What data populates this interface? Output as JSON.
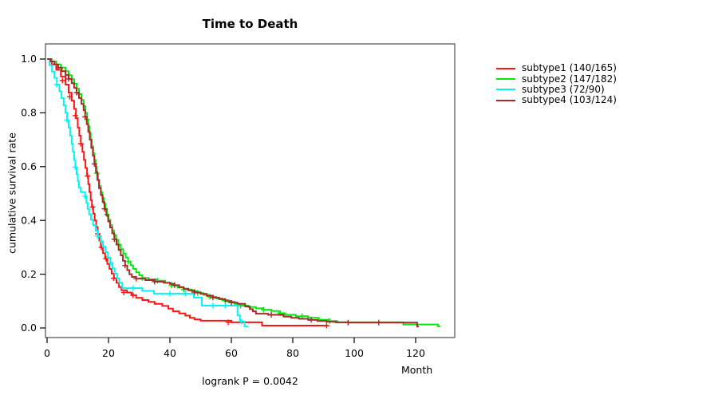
{
  "chart_data": {
    "type": "line",
    "subtype": "kaplan-meier-step",
    "title": "Time to Death",
    "xlabel": "Month",
    "ylabel": "cumulative survival rate",
    "annotation": "logrank P = 0.0042",
    "xlim": [
      0,
      133
    ],
    "ylim": [
      0,
      1.04
    ],
    "grid": false,
    "legend_position": "right-outside",
    "x_ticks": [
      0,
      20,
      40,
      60,
      80,
      100,
      120
    ],
    "x_tick_labels": [
      "0",
      "20",
      "40",
      "60",
      "80",
      "100",
      "120"
    ],
    "y_ticks": [
      0,
      0.2,
      0.4,
      0.6,
      0.8,
      1.0
    ],
    "y_tick_labels": [
      "0.0",
      "0.2",
      "0.4",
      "0.6",
      "0.8",
      "1.0"
    ],
    "frame_color": "#4d4d4d",
    "tick_color": "#000000",
    "series": [
      {
        "name": "subtype1 (140/165)",
        "color": "#ff1414",
        "end": 91.5,
        "points": [
          [
            0,
            1.0
          ],
          [
            1.5,
            0.98
          ],
          [
            3,
            0.96
          ],
          [
            4.5,
            0.935
          ],
          [
            6,
            0.905
          ],
          [
            7,
            0.875
          ],
          [
            8,
            0.845
          ],
          [
            8.8,
            0.815
          ],
          [
            9.4,
            0.78
          ],
          [
            10,
            0.745
          ],
          [
            10.5,
            0.715
          ],
          [
            11,
            0.685
          ],
          [
            11.5,
            0.655
          ],
          [
            12,
            0.625
          ],
          [
            12.5,
            0.595
          ],
          [
            13,
            0.565
          ],
          [
            13.4,
            0.535
          ],
          [
            13.8,
            0.505
          ],
          [
            14.2,
            0.475
          ],
          [
            14.6,
            0.45
          ],
          [
            15,
            0.425
          ],
          [
            15.5,
            0.4
          ],
          [
            16,
            0.375
          ],
          [
            16.5,
            0.35
          ],
          [
            17,
            0.325
          ],
          [
            17.5,
            0.3
          ],
          [
            18.2,
            0.278
          ],
          [
            18.9,
            0.258
          ],
          [
            19.6,
            0.238
          ],
          [
            20.3,
            0.22
          ],
          [
            21,
            0.202
          ],
          [
            21.8,
            0.185
          ],
          [
            22.6,
            0.168
          ],
          [
            23.4,
            0.152
          ],
          [
            24.2,
            0.14
          ],
          [
            26,
            0.132
          ],
          [
            27.5,
            0.122
          ],
          [
            29,
            0.112
          ],
          [
            31,
            0.104
          ],
          [
            33,
            0.097
          ],
          [
            35,
            0.09
          ],
          [
            37.5,
            0.082
          ],
          [
            39.5,
            0.072
          ],
          [
            41,
            0.062
          ],
          [
            43,
            0.054
          ],
          [
            45,
            0.046
          ],
          [
            46.5,
            0.038
          ],
          [
            48,
            0.032
          ],
          [
            50,
            0.027
          ],
          [
            60,
            0.021
          ],
          [
            70,
            0.009
          ]
        ],
        "censors": [
          [
            5,
            0.92
          ],
          [
            7.4,
            0.86
          ],
          [
            9.2,
            0.79
          ],
          [
            11,
            0.685
          ],
          [
            13.2,
            0.565
          ],
          [
            14.8,
            0.45
          ],
          [
            16.5,
            0.35
          ],
          [
            17.7,
            0.3
          ],
          [
            19.2,
            0.258
          ],
          [
            21.7,
            0.185
          ],
          [
            25,
            0.132
          ],
          [
            28,
            0.122
          ],
          [
            59,
            0.021
          ],
          [
            91,
            0.009
          ]
        ]
      },
      {
        "name": "subtype2 (147/182)",
        "color": "#00e813",
        "end": 128,
        "points": [
          [
            0,
            1.0
          ],
          [
            1.5,
            0.991
          ],
          [
            3,
            0.98
          ],
          [
            4.5,
            0.968
          ],
          [
            6,
            0.955
          ],
          [
            7,
            0.94
          ],
          [
            8,
            0.925
          ],
          [
            8.8,
            0.908
          ],
          [
            9.6,
            0.89
          ],
          [
            10.4,
            0.87
          ],
          [
            11.2,
            0.848
          ],
          [
            11.9,
            0.825
          ],
          [
            12.5,
            0.8
          ],
          [
            13,
            0.775
          ],
          [
            13.4,
            0.75
          ],
          [
            13.8,
            0.725
          ],
          [
            14.2,
            0.7
          ],
          [
            14.6,
            0.675
          ],
          [
            15,
            0.65
          ],
          [
            15.4,
            0.625
          ],
          [
            15.8,
            0.6
          ],
          [
            16.2,
            0.575
          ],
          [
            16.6,
            0.55
          ],
          [
            17,
            0.527
          ],
          [
            17.5,
            0.505
          ],
          [
            18,
            0.483
          ],
          [
            18.5,
            0.462
          ],
          [
            19,
            0.442
          ],
          [
            19.5,
            0.422
          ],
          [
            20,
            0.402
          ],
          [
            20.6,
            0.382
          ],
          [
            21.2,
            0.363
          ],
          [
            21.8,
            0.345
          ],
          [
            22.5,
            0.327
          ],
          [
            23.2,
            0.31
          ],
          [
            24,
            0.293
          ],
          [
            24.8,
            0.277
          ],
          [
            25.6,
            0.262
          ],
          [
            26.4,
            0.247
          ],
          [
            27.2,
            0.233
          ],
          [
            28,
            0.22
          ],
          [
            29,
            0.207
          ],
          [
            30,
            0.196
          ],
          [
            31,
            0.186
          ],
          [
            33,
            0.181
          ],
          [
            36,
            0.176
          ],
          [
            38.5,
            0.168
          ],
          [
            40.5,
            0.158
          ],
          [
            42.5,
            0.15
          ],
          [
            44.5,
            0.143
          ],
          [
            47,
            0.137
          ],
          [
            49,
            0.13
          ],
          [
            51,
            0.123
          ],
          [
            53,
            0.116
          ],
          [
            55,
            0.11
          ],
          [
            57,
            0.104
          ],
          [
            59,
            0.098
          ],
          [
            61,
            0.09
          ],
          [
            63,
            0.083
          ],
          [
            65.5,
            0.078
          ],
          [
            68,
            0.073
          ],
          [
            70.5,
            0.068
          ],
          [
            73,
            0.063
          ],
          [
            75.5,
            0.055
          ],
          [
            77.5,
            0.049
          ],
          [
            81,
            0.044
          ],
          [
            85,
            0.038
          ],
          [
            88.5,
            0.031
          ],
          [
            92,
            0.026
          ],
          [
            94.5,
            0.021
          ],
          [
            116,
            0.013
          ],
          [
            127.3,
            0.006
          ]
        ],
        "censors": [
          [
            4.5,
            0.968
          ],
          [
            7,
            0.94
          ],
          [
            10.4,
            0.87
          ],
          [
            13,
            0.775
          ],
          [
            16.2,
            0.575
          ],
          [
            19.5,
            0.422
          ],
          [
            23.2,
            0.31
          ],
          [
            26.4,
            0.247
          ],
          [
            31,
            0.186
          ],
          [
            36,
            0.176
          ],
          [
            40.5,
            0.158
          ],
          [
            44.5,
            0.143
          ],
          [
            49,
            0.13
          ],
          [
            53,
            0.116
          ],
          [
            58,
            0.101
          ],
          [
            63,
            0.083
          ],
          [
            70.5,
            0.068
          ],
          [
            76,
            0.055
          ],
          [
            83,
            0.044
          ],
          [
            92,
            0.026
          ]
        ]
      },
      {
        "name": "subtype3 (72/90)",
        "color": "#00f5f5",
        "end": 65.5,
        "points": [
          [
            0,
            1.0
          ],
          [
            0.8,
            0.977
          ],
          [
            1.6,
            0.953
          ],
          [
            2.4,
            0.93
          ],
          [
            3.2,
            0.905
          ],
          [
            4,
            0.88
          ],
          [
            4.7,
            0.855
          ],
          [
            5.4,
            0.828
          ],
          [
            6,
            0.8
          ],
          [
            6.5,
            0.773
          ],
          [
            7,
            0.745
          ],
          [
            7.5,
            0.715
          ],
          [
            8,
            0.685
          ],
          [
            8.4,
            0.655
          ],
          [
            8.8,
            0.625
          ],
          [
            9.2,
            0.598
          ],
          [
            9.6,
            0.572
          ],
          [
            10,
            0.547
          ],
          [
            10.4,
            0.522
          ],
          [
            11,
            0.505
          ],
          [
            12.4,
            0.49
          ],
          [
            12.8,
            0.465
          ],
          [
            13.2,
            0.443
          ],
          [
            13.7,
            0.422
          ],
          [
            14.3,
            0.402
          ],
          [
            15,
            0.382
          ],
          [
            15.8,
            0.362
          ],
          [
            16.6,
            0.342
          ],
          [
            17.4,
            0.322
          ],
          [
            18.2,
            0.302
          ],
          [
            19,
            0.282
          ],
          [
            19.8,
            0.262
          ],
          [
            20.6,
            0.242
          ],
          [
            21.3,
            0.222
          ],
          [
            22,
            0.202
          ],
          [
            22.8,
            0.185
          ],
          [
            23.5,
            0.168
          ],
          [
            24.5,
            0.148
          ],
          [
            31,
            0.138
          ],
          [
            34.8,
            0.128
          ],
          [
            47.8,
            0.113
          ],
          [
            50.4,
            0.083
          ],
          [
            62,
            0.047
          ],
          [
            62.8,
            0.024
          ],
          [
            64.3,
            0.005
          ]
        ],
        "censors": [
          [
            3.2,
            0.905
          ],
          [
            6.5,
            0.773
          ],
          [
            9.2,
            0.598
          ],
          [
            12.4,
            0.49
          ],
          [
            16.4,
            0.342
          ],
          [
            20.6,
            0.242
          ],
          [
            28,
            0.148
          ],
          [
            40,
            0.128
          ],
          [
            45,
            0.128
          ],
          [
            54,
            0.083
          ],
          [
            58,
            0.083
          ],
          [
            63.3,
            0.024
          ]
        ]
      },
      {
        "name": "subtype4 (103/124)",
        "color": "#a52a2a",
        "end": 121,
        "points": [
          [
            0,
            1.0
          ],
          [
            1.2,
            0.991
          ],
          [
            2.4,
            0.98
          ],
          [
            3.6,
            0.968
          ],
          [
            4.8,
            0.955
          ],
          [
            6,
            0.941
          ],
          [
            7,
            0.926
          ],
          [
            8,
            0.91
          ],
          [
            8.8,
            0.893
          ],
          [
            9.6,
            0.875
          ],
          [
            10.4,
            0.855
          ],
          [
            11.2,
            0.833
          ],
          [
            11.9,
            0.81
          ],
          [
            12.4,
            0.785
          ],
          [
            12.9,
            0.758
          ],
          [
            13.4,
            0.73
          ],
          [
            13.9,
            0.7
          ],
          [
            14.4,
            0.67
          ],
          [
            14.9,
            0.64
          ],
          [
            15.4,
            0.61
          ],
          [
            15.9,
            0.58
          ],
          [
            16.4,
            0.55
          ],
          [
            16.9,
            0.52
          ],
          [
            17.5,
            0.494
          ],
          [
            18.1,
            0.468
          ],
          [
            18.7,
            0.443
          ],
          [
            19.3,
            0.419
          ],
          [
            19.9,
            0.396
          ],
          [
            20.5,
            0.374
          ],
          [
            21.2,
            0.352
          ],
          [
            21.9,
            0.33
          ],
          [
            22.6,
            0.31
          ],
          [
            23.3,
            0.29
          ],
          [
            24,
            0.27
          ],
          [
            24.7,
            0.25
          ],
          [
            25.4,
            0.232
          ],
          [
            26.1,
            0.215
          ],
          [
            26.8,
            0.2
          ],
          [
            27.6,
            0.19
          ],
          [
            29,
            0.183
          ],
          [
            32,
            0.178
          ],
          [
            35,
            0.172
          ],
          [
            38,
            0.168
          ],
          [
            40,
            0.164
          ],
          [
            41.5,
            0.159
          ],
          [
            43,
            0.152
          ],
          [
            44.5,
            0.146
          ],
          [
            46,
            0.14
          ],
          [
            48,
            0.133
          ],
          [
            50,
            0.127
          ],
          [
            52,
            0.12
          ],
          [
            54,
            0.113
          ],
          [
            56,
            0.107
          ],
          [
            58,
            0.1
          ],
          [
            60,
            0.094
          ],
          [
            62,
            0.09
          ],
          [
            64.5,
            0.08
          ],
          [
            66,
            0.07
          ],
          [
            67,
            0.062
          ],
          [
            68,
            0.053
          ],
          [
            72,
            0.049
          ],
          [
            77,
            0.042
          ],
          [
            79.5,
            0.038
          ],
          [
            82,
            0.034
          ],
          [
            85,
            0.03
          ],
          [
            88,
            0.026
          ],
          [
            91,
            0.023
          ],
          [
            94,
            0.021
          ],
          [
            98,
            0.02
          ],
          [
            120.5,
            0.005
          ]
        ],
        "censors": [
          [
            3.6,
            0.968
          ],
          [
            7,
            0.926
          ],
          [
            9.6,
            0.875
          ],
          [
            12.4,
            0.785
          ],
          [
            15.4,
            0.61
          ],
          [
            18.7,
            0.443
          ],
          [
            21.9,
            0.33
          ],
          [
            25.4,
            0.232
          ],
          [
            29,
            0.183
          ],
          [
            35,
            0.172
          ],
          [
            41.5,
            0.159
          ],
          [
            48,
            0.133
          ],
          [
            54,
            0.113
          ],
          [
            60,
            0.094
          ],
          [
            73,
            0.049
          ],
          [
            86,
            0.03
          ],
          [
            98,
            0.02
          ],
          [
            108,
            0.02
          ]
        ]
      }
    ]
  }
}
